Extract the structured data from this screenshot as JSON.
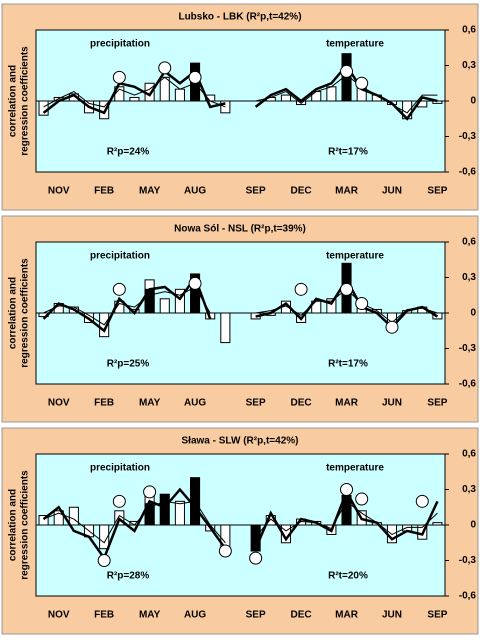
{
  "chart_data": [
    {
      "type": "bar",
      "title": "Lubsko - LBK (R²p,t=42%)",
      "y_label": [
        "correlation and",
        "regression coefficients"
      ],
      "annotations": [
        "precipitation",
        "temperature",
        "R²p=24%",
        "R²t=17%"
      ],
      "categories": [
        null,
        "NOV",
        null,
        null,
        "FEB",
        null,
        null,
        "MAY",
        null,
        null,
        "AUG",
        null,
        null,
        null,
        "SEP",
        null,
        null,
        "DEC",
        null,
        null,
        "MAR",
        null,
        null,
        "JUN",
        null,
        null,
        "SEP"
      ],
      "ylim": [
        -0.6,
        0.6
      ],
      "yticks": [
        {
          "value": 0.6,
          "label": "0,6"
        },
        {
          "value": 0.3,
          "label": "0,3"
        },
        0,
        {
          "value": -0.3,
          "label": "-0,3"
        },
        {
          "value": -0.6,
          "label": "-0,6"
        }
      ],
      "series": [
        {
          "kind": "bar",
          "color": "#ffffff",
          "values": [
            -0.12,
            0.03,
            0.06,
            -0.1,
            -0.15,
            0.12,
            0.03,
            0.15,
            0.2,
            0.1,
            null,
            0.05,
            -0.1,
            null,
            0,
            0.03,
            0.05,
            -0.03,
            0.08,
            0.12,
            null,
            0.15,
            0.05,
            -0.03,
            -0.15,
            -0.05,
            -0.02
          ]
        },
        {
          "kind": "bar",
          "color": "#000000",
          "values": [
            null,
            null,
            null,
            null,
            null,
            null,
            null,
            null,
            null,
            null,
            0.32,
            null,
            null,
            null,
            null,
            null,
            null,
            null,
            null,
            null,
            0.4,
            null,
            null,
            null,
            null,
            null,
            null
          ]
        },
        {
          "kind": "line",
          "color": "#000000",
          "width": 2.5,
          "values": [
            -0.1,
            0,
            0.05,
            -0.05,
            -0.1,
            0.15,
            0.12,
            0.05,
            0.25,
            0.15,
            0.25,
            -0.05,
            -0.02,
            null,
            -0.05,
            0.05,
            0.1,
            0,
            0.1,
            0.15,
            0.3,
            0.1,
            0.05,
            -0.02,
            -0.15,
            0.03,
            0
          ]
        },
        {
          "kind": "line",
          "color": "#000000",
          "width": 1,
          "values": [
            -0.05,
            0.02,
            0.08,
            -0.02,
            -0.05,
            0.1,
            0.05,
            0.1,
            0.2,
            0.1,
            0.15,
            0,
            -0.05,
            null,
            0,
            0.03,
            0.08,
            -0.02,
            0.08,
            0.12,
            0.22,
            0.12,
            0.05,
            -0.03,
            -0.1,
            0.05,
            0.05
          ]
        },
        {
          "kind": "circle",
          "color": "#ffffff",
          "values": [
            null,
            null,
            null,
            null,
            null,
            0.2,
            null,
            null,
            0.28,
            null,
            0.2,
            null,
            null,
            null,
            null,
            null,
            null,
            null,
            null,
            null,
            0.25,
            0.15,
            null,
            null,
            null,
            null,
            null
          ]
        }
      ]
    },
    {
      "type": "bar",
      "title": "Nowa Sól - NSL (R²p,t=39%)",
      "y_label": [
        "correlation and",
        "regression coefficients"
      ],
      "annotations": [
        "precipitation",
        "temperature",
        "R²p=25%",
        "R²t=17%"
      ],
      "categories": [
        null,
        "NOV",
        null,
        null,
        "FEB",
        null,
        null,
        "MAY",
        null,
        null,
        "AUG",
        null,
        null,
        null,
        "SEP",
        null,
        null,
        "DEC",
        null,
        null,
        "MAR",
        null,
        null,
        "JUN",
        null,
        null,
        "SEP"
      ],
      "ylim": [
        -0.6,
        0.6
      ],
      "yticks": [
        {
          "value": 0.6,
          "label": "0,6"
        },
        {
          "value": 0.3,
          "label": "0,3"
        },
        0,
        {
          "value": -0.3,
          "label": "-0,3"
        },
        {
          "value": -0.6,
          "label": "-0,6"
        }
      ],
      "series": [
        {
          "kind": "bar",
          "color": "#ffffff",
          "values": [
            -0.03,
            0.08,
            0.05,
            -0.08,
            -0.2,
            0.1,
            0.03,
            0.28,
            0.12,
            0.2,
            null,
            -0.05,
            -0.25,
            null,
            -0.05,
            -0.02,
            0.1,
            -0.08,
            0.1,
            0.12,
            null,
            0.05,
            0.03,
            -0.12,
            0.02,
            0.05,
            -0.05
          ]
        },
        {
          "kind": "bar",
          "color": "#000000",
          "values": [
            null,
            null,
            null,
            null,
            null,
            null,
            null,
            0.2,
            null,
            null,
            0.33,
            null,
            null,
            null,
            null,
            null,
            null,
            null,
            null,
            null,
            0.42,
            null,
            null,
            null,
            null,
            null,
            null
          ]
        },
        {
          "kind": "line",
          "color": "#000000",
          "width": 2.5,
          "values": [
            -0.05,
            0.08,
            0.03,
            -0.05,
            -0.15,
            0.12,
            0,
            0.2,
            0.22,
            0.12,
            0.3,
            -0.05,
            null,
            null,
            -0.03,
            0,
            0.08,
            -0.05,
            0.12,
            0.08,
            0.28,
            0.05,
            0,
            -0.12,
            0.02,
            0.05,
            -0.03
          ]
        },
        {
          "kind": "line",
          "color": "#000000",
          "width": 1,
          "values": [
            0,
            0.06,
            0.05,
            -0.02,
            -0.1,
            0.08,
            0.05,
            0.15,
            0.18,
            0.15,
            0.22,
            0,
            null,
            null,
            0,
            0.02,
            0.06,
            -0.02,
            0.1,
            0.1,
            0.2,
            0.08,
            0.02,
            -0.08,
            0.03,
            0.04,
            0
          ]
        },
        {
          "kind": "circle",
          "color": "#ffffff",
          "values": [
            null,
            null,
            null,
            null,
            null,
            0.2,
            null,
            null,
            null,
            null,
            0.25,
            null,
            null,
            null,
            null,
            null,
            null,
            0.2,
            null,
            null,
            0.2,
            0.08,
            null,
            -0.12,
            null,
            null,
            null
          ]
        }
      ]
    },
    {
      "type": "bar",
      "title": "Sława - SLW (R²p,t=42%)",
      "y_label": [
        "correlation and",
        "regression coefficients"
      ],
      "annotations": [
        "precipitation",
        "temperature",
        "R²p=28%",
        "R²t=20%"
      ],
      "categories": [
        null,
        "NOV",
        null,
        null,
        "FEB",
        null,
        null,
        "MAY",
        null,
        null,
        "AUG",
        null,
        null,
        null,
        "SEP",
        null,
        null,
        "DEC",
        null,
        null,
        "MAR",
        null,
        null,
        "JUN",
        null,
        null,
        "SEP"
      ],
      "ylim": [
        -0.6,
        0.6
      ],
      "yticks": [
        {
          "value": 0.6,
          "label": "0,6"
        },
        {
          "value": 0.3,
          "label": "0,3"
        },
        0,
        {
          "value": -0.3,
          "label": "-0,3"
        },
        {
          "value": -0.6,
          "label": "-0,6"
        }
      ],
      "series": [
        {
          "kind": "bar",
          "color": "#ffffff",
          "values": [
            0.08,
            0.12,
            0.15,
            -0.1,
            -0.2,
            0.12,
            0.03,
            0.28,
            null,
            0.2,
            null,
            -0.05,
            -0.25,
            null,
            null,
            0.08,
            -0.15,
            0.05,
            0.03,
            -0.08,
            null,
            0.12,
            0.02,
            -0.15,
            -0.05,
            -0.12,
            0.02
          ]
        },
        {
          "kind": "bar",
          "color": "#000000",
          "values": [
            null,
            null,
            null,
            null,
            null,
            null,
            null,
            0.18,
            0.26,
            null,
            0.4,
            null,
            null,
            null,
            -0.22,
            null,
            null,
            null,
            null,
            null,
            0.25,
            null,
            null,
            null,
            null,
            null,
            null
          ]
        },
        {
          "kind": "line",
          "color": "#000000",
          "width": 2.5,
          "values": [
            0.05,
            0.15,
            -0.05,
            -0.1,
            -0.28,
            0.05,
            -0.05,
            0.2,
            0.15,
            0.3,
            0.15,
            -0.02,
            -0.2,
            null,
            -0.2,
            0.1,
            -0.12,
            0.05,
            0.02,
            -0.05,
            0.28,
            0.05,
            0.02,
            -0.12,
            -0.05,
            -0.08,
            0.2
          ]
        },
        {
          "kind": "line",
          "color": "#000000",
          "width": 1,
          "values": [
            0.05,
            0.1,
            0.05,
            -0.05,
            -0.15,
            0.08,
            0,
            0.15,
            0.2,
            0.18,
            0.2,
            0,
            -0.15,
            null,
            -0.1,
            0.05,
            -0.05,
            0.03,
            0.02,
            -0.03,
            0.2,
            0.1,
            0.02,
            -0.08,
            -0.02,
            -0.02,
            0.1
          ]
        },
        {
          "kind": "circle",
          "color": "#ffffff",
          "values": [
            null,
            null,
            null,
            null,
            -0.3,
            0.2,
            null,
            0.28,
            null,
            null,
            null,
            null,
            -0.22,
            null,
            -0.28,
            null,
            null,
            null,
            null,
            null,
            0.3,
            0.22,
            null,
            null,
            null,
            0.2,
            null
          ]
        }
      ]
    }
  ]
}
